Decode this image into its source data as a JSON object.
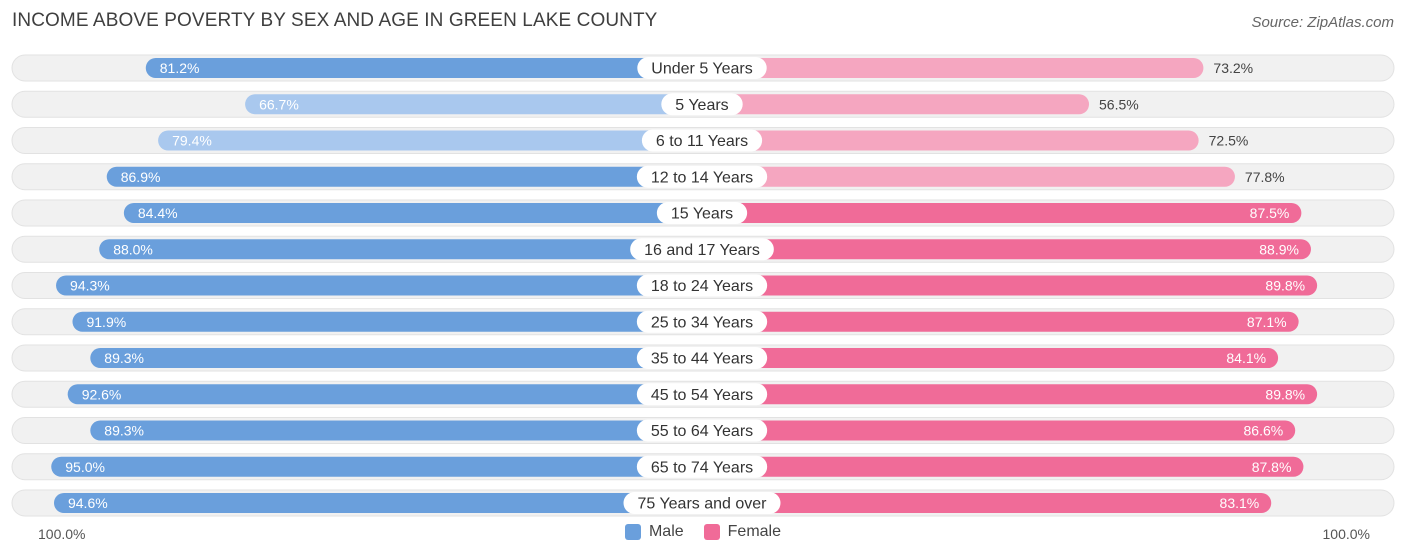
{
  "header": {
    "title": "INCOME ABOVE POVERTY BY SEX AND AGE IN GREEN LAKE COUNTY",
    "source": "Source: ZipAtlas.com"
  },
  "axis": {
    "left_label": "100.0%",
    "right_label": "100.0%"
  },
  "legend": {
    "male": "Male",
    "female": "Female"
  },
  "colors": {
    "male_strong": "#6a9fdc",
    "male_light": "#a9c8ee",
    "female_strong": "#f06b98",
    "female_light": "#f5a6c0",
    "row_bg": "#f1f1f1"
  },
  "chart_data": {
    "type": "bar",
    "orientation": "horizontal-diverging",
    "title": "INCOME ABOVE POVERTY BY SEX AND AGE IN GREEN LAKE COUNTY",
    "xlim": [
      -100,
      100
    ],
    "categories": [
      "Under 5 Years",
      "5 Years",
      "6 to 11 Years",
      "12 to 14 Years",
      "15 Years",
      "16 and 17 Years",
      "18 to 24 Years",
      "25 to 34 Years",
      "35 to 44 Years",
      "45 to 54 Years",
      "55 to 64 Years",
      "65 to 74 Years",
      "75 Years and over"
    ],
    "series": [
      {
        "name": "Male",
        "values": [
          81.2,
          66.7,
          79.4,
          86.9,
          84.4,
          88.0,
          94.3,
          91.9,
          89.3,
          92.6,
          89.3,
          95.0,
          94.6
        ]
      },
      {
        "name": "Female",
        "values": [
          73.2,
          56.5,
          72.5,
          77.8,
          87.5,
          88.9,
          89.8,
          87.1,
          84.1,
          89.8,
          86.6,
          87.8,
          83.1
        ]
      }
    ],
    "value_labels_male": [
      "81.2%",
      "66.7%",
      "79.4%",
      "86.9%",
      "84.4%",
      "88.0%",
      "94.3%",
      "91.9%",
      "89.3%",
      "92.6%",
      "89.3%",
      "95.0%",
      "94.6%"
    ],
    "value_labels_female": [
      "73.2%",
      "56.5%",
      "72.5%",
      "77.8%",
      "87.5%",
      "88.9%",
      "89.8%",
      "87.1%",
      "84.1%",
      "89.8%",
      "86.6%",
      "87.8%",
      "83.1%"
    ]
  }
}
